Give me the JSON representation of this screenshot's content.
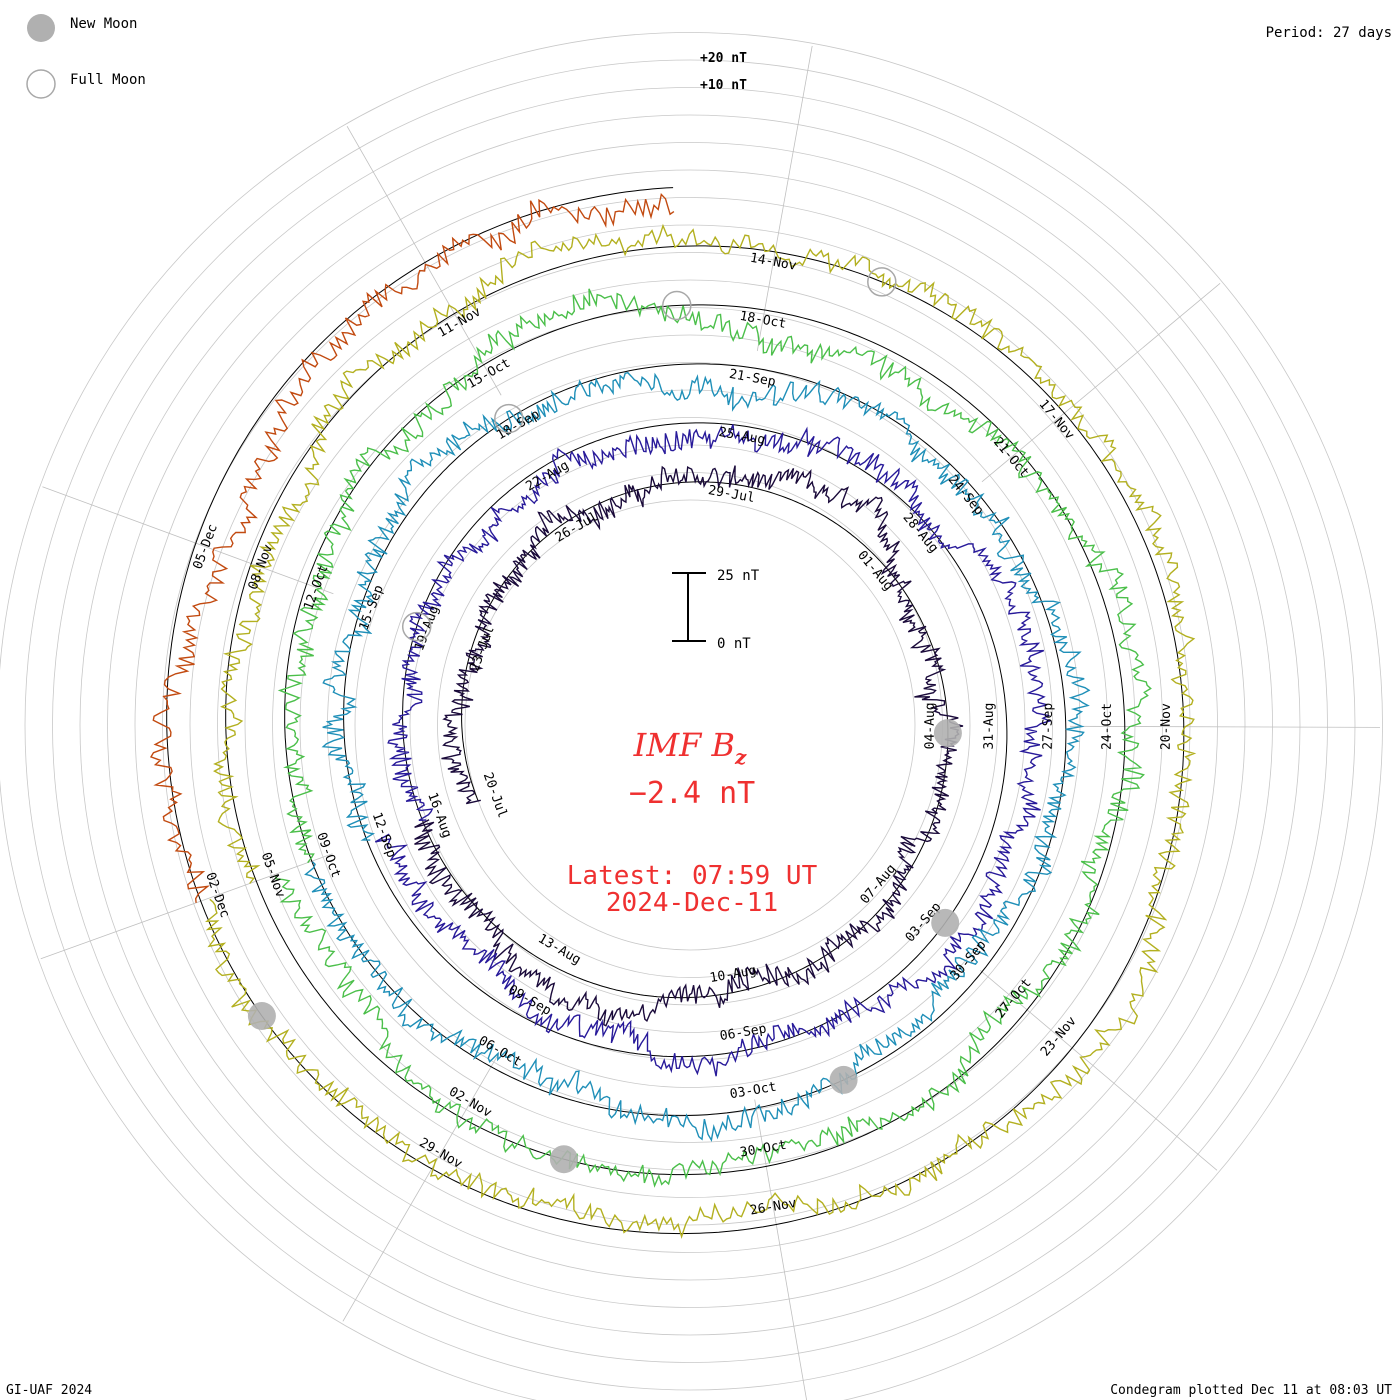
{
  "legend": {
    "new_moon_label": "New Moon",
    "full_moon_label": "Full Moon"
  },
  "period_label": "Period: 27 days",
  "footer": {
    "left": "GI-UAF 2024",
    "right": "Condegram plotted Dec 11 at 08:03 UT"
  },
  "center": {
    "title_main": "IMF B",
    "title_sub": "z",
    "value": "−2.4 nT",
    "latest_line1": "Latest: 07:59 UT",
    "latest_line2": "2024-Dec-11",
    "text_color": "#ef3030"
  },
  "chart_data": {
    "type": "condegram",
    "title": "IMF Bz",
    "period_days": 27,
    "start_label": "20-Jul",
    "end_label": "11-Dec",
    "current_value_nT": -2.4,
    "scale_bar": {
      "top_label": "25 nT",
      "bottom_label": "0 nT",
      "span_nT": 25
    },
    "outer_scale_labels": [
      "+20 nT",
      "+10 nT"
    ],
    "cycles": [
      {
        "index": 1,
        "start": "20-Jul",
        "color": "#1a0a3a",
        "date_ticks": [
          "20-Jul",
          "23-Jul",
          "26-Jul",
          "29-Jul",
          "01-Aug",
          "04-Aug",
          "07-Aug",
          "10-Aug",
          "13-Aug"
        ]
      },
      {
        "index": 2,
        "start": "16-Aug",
        "color": "#281a9a",
        "date_ticks": [
          "16-Aug",
          "19-Aug",
          "22-Aug",
          "25-Aug",
          "28-Aug",
          "31-Aug",
          "03-Sep",
          "06-Sep",
          "09-Sep"
        ]
      },
      {
        "index": 3,
        "start": "12-Sep",
        "color": "#1f8fb8",
        "date_ticks": [
          "12-Sep",
          "15-Sep",
          "18-Sep",
          "21-Sep",
          "24-Sep",
          "27-Sep",
          "30-Sep",
          "03-Oct",
          "06-Oct"
        ]
      },
      {
        "index": 4,
        "start": "09-Oct",
        "color": "#4bbf4a",
        "date_ticks": [
          "09-Oct",
          "12-Oct",
          "15-Oct",
          "18-Oct",
          "21-Oct",
          "24-Oct",
          "27-Oct",
          "30-Oct",
          "02-Nov"
        ]
      },
      {
        "index": 5,
        "start": "05-Nov",
        "color": "#b3b020",
        "date_ticks": [
          "05-Nov",
          "08-Nov",
          "11-Nov",
          "14-Nov",
          "17-Nov",
          "20-Nov",
          "23-Nov",
          "26-Nov",
          "29-Nov"
        ]
      },
      {
        "index": 6,
        "start": "02-Dec",
        "color": "#c24a10",
        "date_ticks": [
          "02-Dec",
          "05-Dec"
        ]
      }
    ],
    "new_moon_dates": [
      "04-Aug",
      "03-Sep",
      "02-Oct",
      "01-Nov",
      "01-Dec"
    ],
    "full_moon_dates": [
      "19-Aug",
      "18-Sep",
      "17-Oct",
      "15-Nov"
    ]
  }
}
